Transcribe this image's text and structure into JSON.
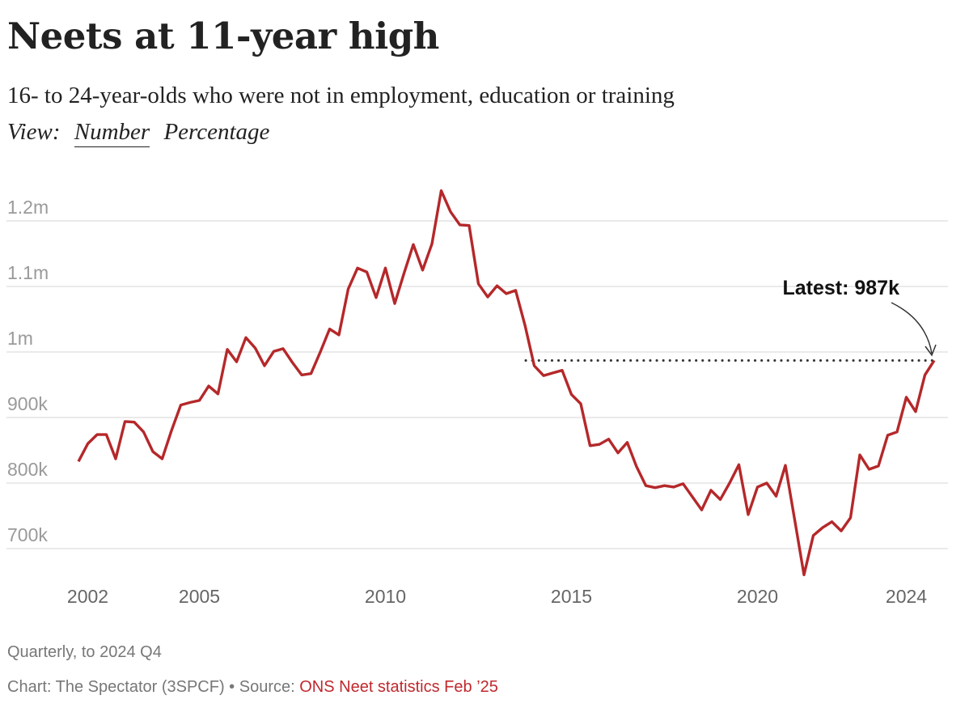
{
  "header": {
    "title": "Neets at 11-year high",
    "subtitle": "16- to 24-year-olds who were not in employment, education or training",
    "view_label": "View:",
    "view_options": [
      "Number",
      "Percentage"
    ],
    "view_selected": "Number"
  },
  "footer": {
    "note": "Quarterly, to 2024 Q4",
    "credit": "Chart: The Spectator (3SPCF) • Source: ",
    "source_link": "ONS Neet statistics Feb ’25"
  },
  "colors": {
    "line": "#b5282a",
    "grid": "#e3e3e3",
    "ytick": "#9a9a9a",
    "xtick": "#666666",
    "source": "#c0282d"
  },
  "chart_data": {
    "type": "line",
    "title": "Neets at 11-year high",
    "xlabel": "",
    "ylabel": "",
    "start": "2001 Q4",
    "end": "2024 Q4",
    "frequency": "quarterly",
    "ylim": [
      650,
      1250
    ],
    "yticks": [
      {
        "value": 700,
        "label": "700k"
      },
      {
        "value": 800,
        "label": "800k"
      },
      {
        "value": 900,
        "label": "900k"
      },
      {
        "value": 1000,
        "label": "1m"
      },
      {
        "value": 1100,
        "label": "1.1m"
      },
      {
        "value": 1200,
        "label": "1.2m"
      }
    ],
    "xticks": [
      {
        "year": 2002,
        "label": "2002"
      },
      {
        "year": 2005,
        "label": "2005"
      },
      {
        "year": 2010,
        "label": "2010"
      },
      {
        "year": 2015,
        "label": "2015"
      },
      {
        "year": 2020,
        "label": "2020"
      },
      {
        "year": 2024,
        "label": "2024"
      }
    ],
    "grid": true,
    "series": [
      {
        "name": "Neets (thousands)",
        "values": [
          833,
          860,
          874,
          874,
          837,
          894,
          893,
          878,
          848,
          837,
          880,
          919,
          923,
          926,
          948,
          936,
          1004,
          985,
          1022,
          1006,
          979,
          1001,
          1005,
          984,
          965,
          967,
          1000,
          1035,
          1026,
          1096,
          1128,
          1122,
          1083,
          1128,
          1074,
          1120,
          1164,
          1125,
          1165,
          1246,
          1214,
          1194,
          1193,
          1104,
          1084,
          1101,
          1089,
          1094,
          1041,
          979,
          964,
          968,
          972,
          935,
          921,
          857,
          859,
          867,
          846,
          862,
          825,
          796,
          793,
          796,
          794,
          799,
          779,
          759,
          789,
          775,
          800,
          828,
          752,
          794,
          800,
          780,
          827,
          744,
          660,
          720,
          732,
          741,
          727,
          747,
          843,
          821,
          826,
          873,
          878,
          931,
          909,
          965,
          987
        ]
      }
    ],
    "annotations": [
      {
        "text": "Latest: 987k",
        "value": 987,
        "reference_line": "dotted"
      }
    ]
  }
}
